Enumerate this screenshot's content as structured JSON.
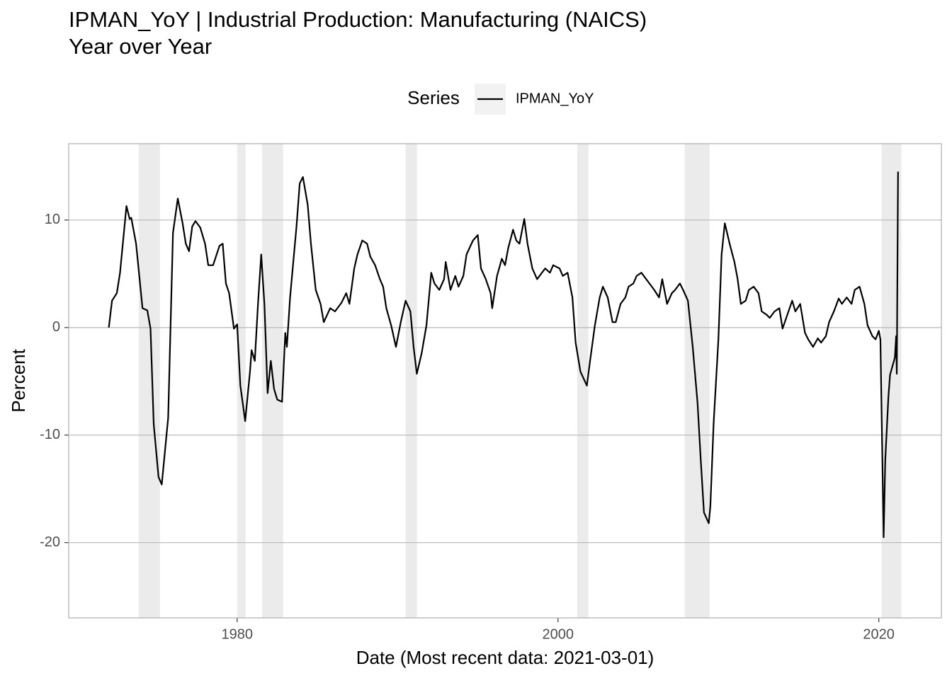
{
  "chart_data": {
    "type": "line",
    "title": "IPMAN_YoY | Industrial Production: Manufacturing (NAICS)",
    "subtitle": "Year over Year",
    "legend_title": "Series",
    "x_label": "Date (Most recent data: 2021-03-01)",
    "y_label": "Percent",
    "xlim": [
      1969.5,
      2023.9
    ],
    "xticks": [
      1980,
      2000,
      2020
    ],
    "ylim": [
      -27,
      17.1
    ],
    "yticks": [
      -20,
      -10,
      0,
      10
    ],
    "grid": true,
    "legend_position": "top",
    "recession_color": "#ebebeb",
    "recessions": [
      [
        1973.86,
        1975.19
      ],
      [
        1980.0,
        1980.53
      ],
      [
        1981.55,
        1982.87
      ],
      [
        1990.5,
        1991.21
      ],
      [
        2001.2,
        2001.9
      ],
      [
        2007.9,
        2009.45
      ],
      [
        2020.17,
        2021.41
      ]
    ],
    "x": [
      1972.0,
      1972.2,
      1972.5,
      1972.7,
      1973.1,
      1973.3,
      1973.4,
      1973.7,
      1973.9,
      1974.1,
      1974.4,
      1974.6,
      1974.8,
      1975.1,
      1975.3,
      1975.7,
      1976.0,
      1976.3,
      1976.6,
      1976.8,
      1977.0,
      1977.2,
      1977.4,
      1977.7,
      1978.0,
      1978.2,
      1978.5,
      1978.9,
      1979.1,
      1979.3,
      1979.5,
      1979.8,
      1980.0,
      1980.2,
      1980.5,
      1980.8,
      1980.9,
      1981.1,
      1981.3,
      1981.5,
      1981.7,
      1981.9,
      1982.1,
      1982.3,
      1982.5,
      1982.8,
      1983.0,
      1983.1,
      1983.3,
      1983.7,
      1983.9,
      1984.1,
      1984.4,
      1984.6,
      1984.9,
      1985.2,
      1985.4,
      1985.8,
      1986.1,
      1986.5,
      1986.8,
      1987.0,
      1987.3,
      1987.5,
      1987.8,
      1988.1,
      1988.3,
      1988.6,
      1988.9,
      1989.1,
      1989.3,
      1989.6,
      1989.9,
      1990.2,
      1990.5,
      1990.8,
      1991.0,
      1991.2,
      1991.5,
      1991.8,
      1992.1,
      1992.3,
      1992.6,
      1992.9,
      1993.0,
      1993.3,
      1993.6,
      1993.8,
      1994.1,
      1994.3,
      1994.7,
      1995.0,
      1995.2,
      1995.5,
      1995.8,
      1995.9,
      1996.2,
      1996.5,
      1996.7,
      1996.9,
      1997.2,
      1997.4,
      1997.6,
      1997.9,
      1998.1,
      1998.4,
      1998.7,
      1999.0,
      1999.2,
      1999.5,
      1999.7,
      2000.1,
      2000.3,
      2000.6,
      2000.9,
      2001.1,
      2001.4,
      2001.8,
      2002.0,
      2002.3,
      2002.6,
      2002.8,
      2003.1,
      2003.4,
      2003.6,
      2003.9,
      2004.2,
      2004.4,
      2004.7,
      2004.9,
      2005.2,
      2005.5,
      2005.7,
      2006.0,
      2006.3,
      2006.5,
      2006.8,
      2007.1,
      2007.3,
      2007.6,
      2007.8,
      2008.1,
      2008.4,
      2008.7,
      2008.9,
      2009.1,
      2009.4,
      2009.5,
      2009.7,
      2010.0,
      2010.2,
      2010.4,
      2010.7,
      2011.0,
      2011.2,
      2011.4,
      2011.7,
      2011.9,
      2012.2,
      2012.5,
      2012.7,
      2013.0,
      2013.2,
      2013.5,
      2013.8,
      2014.0,
      2014.3,
      2014.6,
      2014.8,
      2015.1,
      2015.4,
      2015.6,
      2015.9,
      2016.2,
      2016.4,
      2016.7,
      2016.9,
      2017.2,
      2017.5,
      2017.7,
      2018.0,
      2018.3,
      2018.5,
      2018.8,
      2019.1,
      2019.3,
      2019.6,
      2019.8,
      2020.0,
      2020.1,
      2020.2,
      2020.3,
      2020.4,
      2020.6,
      2020.7,
      2021.0,
      2021.08,
      2021.12,
      2021.2
    ],
    "series": [
      {
        "name": "IPMAN_YoY",
        "color": "#000000",
        "values": [
          0,
          2.5,
          3.2,
          5.1,
          11.3,
          10.1,
          10.2,
          7.8,
          4.8,
          1.8,
          1.6,
          -0.1,
          -9.0,
          -13.9,
          -14.6,
          -8.4,
          8.8,
          12.0,
          9.7,
          7.8,
          7.1,
          9.4,
          9.9,
          9.3,
          7.8,
          5.8,
          5.8,
          7.6,
          7.8,
          4.1,
          3.2,
          -0.1,
          0.3,
          -5.4,
          -8.7,
          -4.1,
          -2.1,
          -3.1,
          2.2,
          6.8,
          2.2,
          -6.1,
          -3.1,
          -5.7,
          -6.7,
          -6.9,
          -0.5,
          -1.8,
          2.8,
          9.4,
          13.4,
          14.0,
          11.4,
          7.8,
          3.5,
          2.2,
          0.5,
          1.8,
          1.5,
          2.3,
          3.2,
          2.2,
          5.5,
          6.8,
          8.1,
          7.8,
          6.6,
          5.8,
          4.5,
          3.8,
          1.8,
          0.2,
          -1.8,
          0.5,
          2.5,
          1.5,
          -1.8,
          -4.3,
          -2.4,
          0.2,
          5.1,
          4.1,
          3.5,
          4.5,
          6.1,
          3.5,
          4.8,
          3.8,
          4.8,
          6.8,
          8.1,
          8.6,
          5.5,
          4.5,
          3.2,
          1.8,
          4.8,
          6.4,
          5.8,
          7.4,
          9.1,
          8.1,
          7.8,
          10.1,
          7.8,
          5.5,
          4.5,
          5.1,
          5.5,
          5.1,
          5.8,
          5.5,
          4.8,
          5.1,
          2.8,
          -1.4,
          -4.1,
          -5.4,
          -3.1,
          0.2,
          2.8,
          3.8,
          2.8,
          0.5,
          0.5,
          2.2,
          2.8,
          3.8,
          4.1,
          4.8,
          5.1,
          4.5,
          4.1,
          3.5,
          2.8,
          4.5,
          2.2,
          3.2,
          3.5,
          4.1,
          3.5,
          2.5,
          -1.8,
          -7.0,
          -12.3,
          -17.2,
          -18.2,
          -16.6,
          -9.0,
          -1.1,
          6.8,
          9.7,
          7.8,
          6.1,
          4.5,
          2.2,
          2.5,
          3.5,
          3.8,
          3.2,
          1.5,
          1.2,
          0.9,
          1.5,
          1.8,
          -0.1,
          1.2,
          2.5,
          1.5,
          2.2,
          -0.5,
          -1.1,
          -1.8,
          -1.0,
          -1.4,
          -0.8,
          0.5,
          1.5,
          2.7,
          2.2,
          2.8,
          2.2,
          3.5,
          3.8,
          2.2,
          0.2,
          -0.8,
          -1.1,
          -0.3,
          -1.1,
          -10.3,
          -19.5,
          -12.4,
          -6.4,
          -4.4,
          -2.8,
          -0.8,
          -4.3,
          14.5
        ]
      }
    ]
  }
}
